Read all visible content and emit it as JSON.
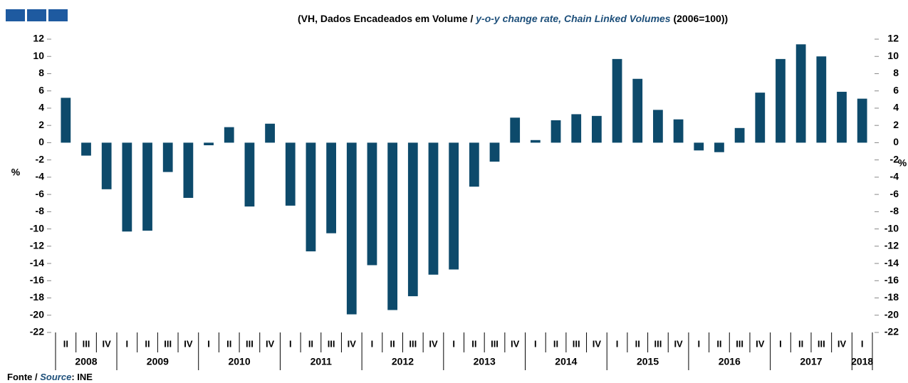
{
  "chart_data": {
    "type": "bar",
    "title_pt": "(VH, Dados  Encadeados  em  Volume /",
    "title_en": "y-o-y change rate, Chain Linked Volumes",
    "title_tail": "(2006=100))",
    "ylabel": "%",
    "y2label": "%",
    "source_pt": "Fonte /",
    "source_en": "Source",
    "source_tail": ": INE",
    "groups": [
      {
        "label": "2008",
        "categories": [
          "II",
          "III",
          "IV"
        ]
      },
      {
        "label": "2009",
        "categories": [
          "I",
          "II",
          "III",
          "IV"
        ]
      },
      {
        "label": "2010",
        "categories": [
          "I",
          "II",
          "III",
          "IV"
        ]
      },
      {
        "label": "2011",
        "categories": [
          "I",
          "II",
          "III",
          "IV"
        ]
      },
      {
        "label": "2012",
        "categories": [
          "I",
          "II",
          "III",
          "IV"
        ]
      },
      {
        "label": "2013",
        "categories": [
          "I",
          "II",
          "III",
          "IV"
        ]
      },
      {
        "label": "2014",
        "categories": [
          "I",
          "II",
          "III",
          "IV"
        ]
      },
      {
        "label": "2015",
        "categories": [
          "I",
          "II",
          "III",
          "IV"
        ]
      },
      {
        "label": "2016",
        "categories": [
          "I",
          "II",
          "III",
          "IV"
        ]
      },
      {
        "label": "2017",
        "categories": [
          "I",
          "II",
          "III",
          "IV"
        ]
      },
      {
        "label": "2018",
        "categories": [
          "I"
        ]
      }
    ],
    "values": [
      5.2,
      -1.5,
      -5.4,
      -10.3,
      -10.2,
      -3.4,
      -6.4,
      -0.3,
      1.8,
      -7.4,
      2.2,
      -7.3,
      -12.6,
      -10.5,
      -19.9,
      -14.2,
      -19.4,
      -17.8,
      -15.3,
      -14.7,
      -5.1,
      -2.2,
      2.9,
      0.3,
      2.6,
      3.3,
      3.1,
      9.7,
      7.4,
      3.8,
      2.7,
      -0.9,
      -1.1,
      1.7,
      5.8,
      9.7,
      11.4,
      10.0,
      5.9,
      5.1
    ],
    "color": "#0d4a6b",
    "ylim": [
      -22,
      12
    ],
    "yticks": [
      -22,
      -20,
      -18,
      -16,
      -14,
      -12,
      -10,
      -8,
      -6,
      -4,
      -2,
      0,
      2,
      4,
      6,
      8,
      10,
      12
    ],
    "y2lim": [
      -22,
      12
    ],
    "y2ticks": [
      -22,
      -20,
      -18,
      -16,
      -14,
      -12,
      -10,
      -8,
      -6,
      -4,
      -2,
      0,
      2,
      4,
      6,
      8,
      10,
      12
    ],
    "grid": false
  }
}
